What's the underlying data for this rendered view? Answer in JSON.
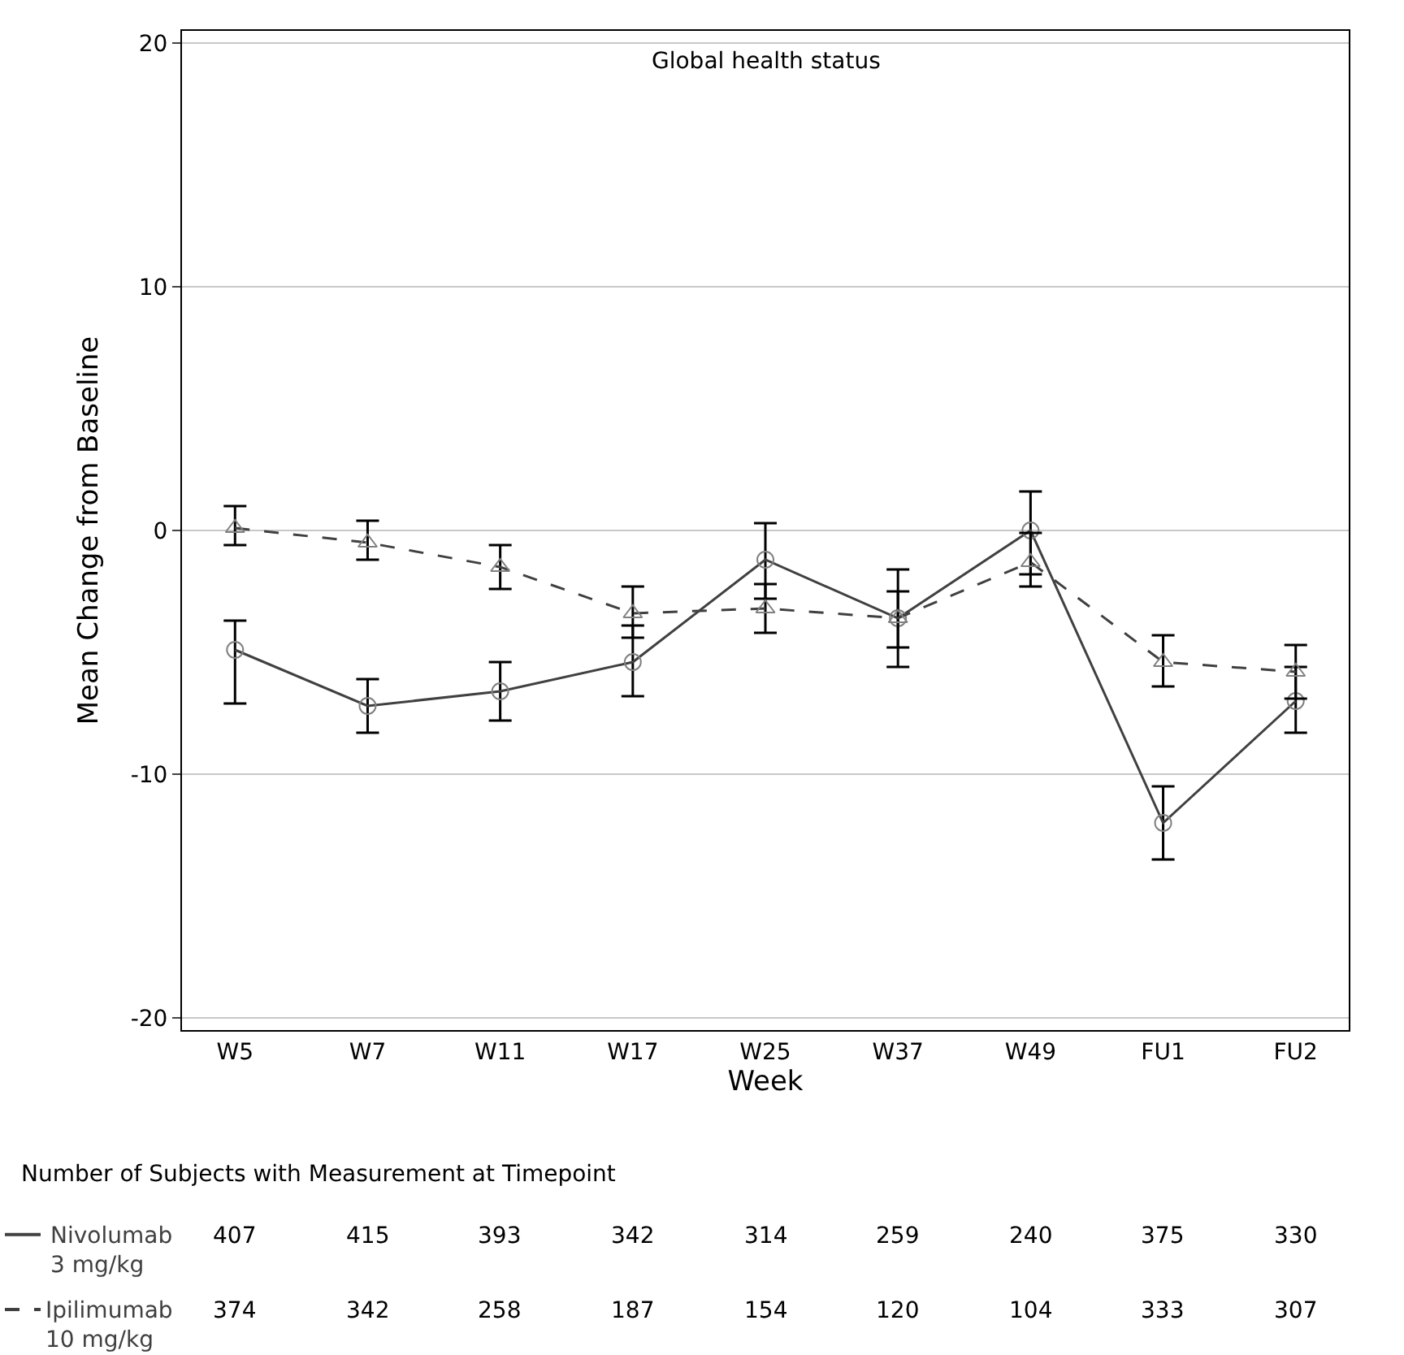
{
  "chart_data": {
    "type": "line",
    "title": "Global health status",
    "xlabel": "Week",
    "ylabel": "Mean Change from Baseline",
    "categories": [
      "W5",
      "W7",
      "W11",
      "W17",
      "W25",
      "W37",
      "W49",
      "FU1",
      "FU2"
    ],
    "series": [
      {
        "name": "Nivolumab 3 mg/kg",
        "color": "#404040",
        "marker": "circle",
        "line_style": "solid",
        "values": [
          -4.9,
          -7.2,
          -6.6,
          -5.4,
          -1.2,
          -3.6,
          0.0,
          -12.0,
          -7.0
        ],
        "errors": [
          [
            -7.1,
            -3.7
          ],
          [
            -8.3,
            -6.1
          ],
          [
            -7.8,
            -5.4
          ],
          [
            -6.8,
            -3.9
          ],
          [
            -2.8,
            0.3
          ],
          [
            -5.6,
            -1.6
          ],
          [
            -1.8,
            1.6
          ],
          [
            -13.5,
            -10.5
          ],
          [
            -8.3,
            -5.6
          ]
        ]
      },
      {
        "name": "Ipilimumab 10 mg/kg",
        "color": "#404040",
        "marker": "triangle",
        "line_style": "dashed",
        "values": [
          0.1,
          -0.5,
          -1.5,
          -3.4,
          -3.2,
          -3.6,
          -1.3,
          -5.4,
          -5.8
        ],
        "errors": [
          [
            -0.6,
            1.0
          ],
          [
            -1.2,
            0.4
          ],
          [
            -2.4,
            -0.6
          ],
          [
            -4.4,
            -2.3
          ],
          [
            -4.2,
            -2.2
          ],
          [
            -4.8,
            -2.5
          ],
          [
            -2.3,
            -0.1
          ],
          [
            -6.4,
            -4.3
          ],
          [
            -6.9,
            -4.7
          ]
        ]
      }
    ],
    "ylim": [
      -20.5,
      20.5
    ],
    "yticks": [
      -20,
      -10,
      0,
      10,
      20
    ],
    "grid": "y",
    "legend": "bottom left",
    "annotations": [
      "Number of Subjects with Measurement at Timepoint",
      "407",
      "415",
      "393",
      "342",
      "314",
      "259",
      "240",
      "375",
      "330",
      "374",
      "342",
      "258",
      "187",
      "154",
      "120",
      "104",
      "333",
      "307"
    ]
  }
}
